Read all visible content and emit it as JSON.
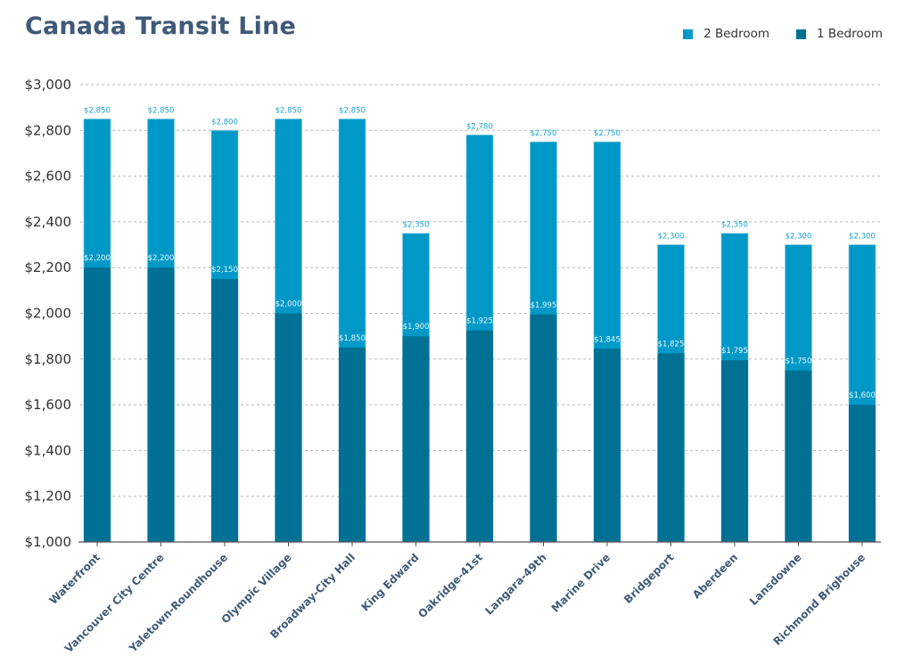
{
  "chart_data": {
    "type": "bar",
    "title": "Canada Transit Line",
    "xlabel": "",
    "ylabel": "",
    "ylim": [
      1000,
      3000
    ],
    "yticks": [
      1000,
      1200,
      1400,
      1600,
      1800,
      2000,
      2200,
      2400,
      2600,
      2800,
      3000
    ],
    "ytick_labels": [
      "$1,000",
      "$1,200",
      "$1,400",
      "$1,600",
      "$1,800",
      "$2,000",
      "$2,200",
      "$2,400",
      "$2,600",
      "$2,800",
      "$3,000"
    ],
    "grid": true,
    "legend_position": "top-right",
    "categories": [
      "Waterfront",
      "Vancouver City Centre",
      "Yaletown-Roundhouse",
      "Olympic Village",
      "Broadway-City Hall",
      "King Edward",
      "Oakridge-41st",
      "Langara-49th",
      "Marine Drive",
      "Bridgeport",
      "Aberdeen",
      "Lansdowne",
      "Richmond Brighouse"
    ],
    "series": [
      {
        "name": "2 Bedroom",
        "color": "#0099c7",
        "values": [
          2850,
          2850,
          2800,
          2850,
          2850,
          2350,
          2780,
          2750,
          2750,
          2300,
          2350,
          2300,
          2300
        ],
        "labels": [
          "$2,850",
          "$2,850",
          "$2,800",
          "$2,850",
          "$2,850",
          "$2,350",
          "$2,780",
          "$2,750",
          "$2,750",
          "$2,300",
          "$2,350",
          "$2,300",
          "$2,300"
        ]
      },
      {
        "name": "1 Bedroom",
        "color": "#007194",
        "values": [
          2200,
          2200,
          2150,
          2000,
          1850,
          1900,
          1925,
          1995,
          1845,
          1825,
          1795,
          1750,
          1600
        ],
        "labels": [
          "$2,200",
          "$2,200",
          "$2,150",
          "$2,000",
          "$1,850",
          "$1,900",
          "$1,925",
          "$1,995",
          "$1,845",
          "$1,825",
          "$1,795",
          "$1,750",
          "$1,600"
        ]
      }
    ]
  },
  "legend": {
    "items": [
      {
        "label": "2 Bedroom",
        "color": "#0099c7"
      },
      {
        "label": "1 Bedroom",
        "color": "#007194"
      }
    ]
  }
}
